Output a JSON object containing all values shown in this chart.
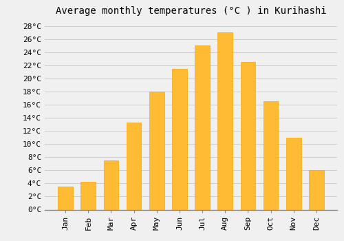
{
  "title": "Average monthly temperatures (°C ) in Kurihashi",
  "months": [
    "Jan",
    "Feb",
    "Mar",
    "Apr",
    "May",
    "Jun",
    "Jul",
    "Aug",
    "Sep",
    "Oct",
    "Nov",
    "Dec"
  ],
  "values": [
    3.5,
    4.2,
    7.5,
    13.3,
    18.0,
    21.5,
    25.0,
    27.0,
    22.5,
    16.5,
    11.0,
    6.0
  ],
  "bar_color": "#FFBB33",
  "bar_edge_color": "#FFA500",
  "background_color": "#F0F0F0",
  "grid_color": "#CCCCCC",
  "title_fontsize": 10,
  "tick_fontsize": 8,
  "ylim": [
    0,
    29
  ],
  "yticks": [
    0,
    2,
    4,
    6,
    8,
    10,
    12,
    14,
    16,
    18,
    20,
    22,
    24,
    26,
    28
  ]
}
